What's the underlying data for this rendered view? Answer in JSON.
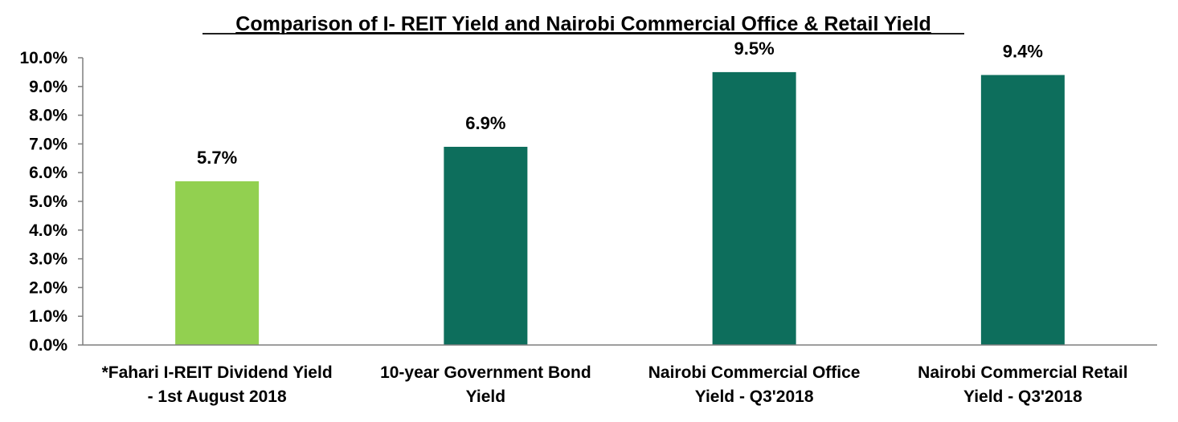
{
  "chart_data": {
    "type": "bar",
    "title": "Comparison of I- REIT Yield and Nairobi Commercial Office & Retail Yield",
    "xlabel": "",
    "ylabel": "",
    "ylim": [
      0,
      10
    ],
    "y_ticks": [
      "0.0%",
      "1.0%",
      "2.0%",
      "3.0%",
      "4.0%",
      "5.0%",
      "6.0%",
      "7.0%",
      "8.0%",
      "9.0%",
      "10.0%"
    ],
    "grid": false,
    "legend": "none",
    "categories": [
      [
        "*Fahari I-REIT Dividend Yield",
        "- 1st August 2018"
      ],
      [
        "10-year Government Bond",
        "Yield"
      ],
      [
        "Nairobi Commercial Office",
        "Yield - Q3'2018"
      ],
      [
        "Nairobi Commercial Retail",
        "Yield - Q3'2018"
      ]
    ],
    "values": [
      5.7,
      6.9,
      9.5,
      9.4
    ],
    "data_labels": [
      "5.7%",
      "6.9%",
      "9.5%",
      "9.4%"
    ],
    "colors": [
      "#92d050",
      "#0d6e5c",
      "#0d6e5c",
      "#0d6e5c"
    ]
  }
}
